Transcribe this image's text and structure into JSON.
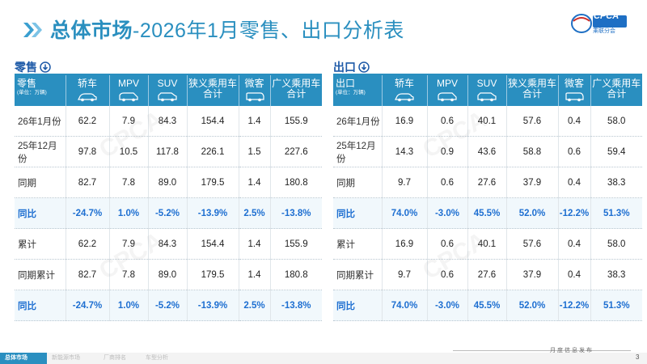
{
  "title": {
    "bold": "总体市场",
    "rest": "-2026年1月零售、出口分析表"
  },
  "logo": {
    "text": "CPCA",
    "sub": "乘联分会"
  },
  "colors": {
    "accent": "#2a8fc0",
    "yoy_text": "#1e6fd1",
    "section_title": "#1e5aa8"
  },
  "retail": {
    "section_title": "零售",
    "header_label": "零售",
    "unit": "(单位：万辆)",
    "columns": [
      "轿车",
      "MPV",
      "SUV",
      "狭义乘用车合计",
      "微客",
      "广义乘用车合计"
    ],
    "rows": [
      {
        "label": "26年1月份",
        "values": [
          "62.2",
          "7.9",
          "84.3",
          "154.4",
          "1.4",
          "155.9"
        ]
      },
      {
        "label": "25年12月份",
        "values": [
          "97.8",
          "10.5",
          "117.8",
          "226.1",
          "1.5",
          "227.6"
        ]
      },
      {
        "label": "同期",
        "values": [
          "82.7",
          "7.8",
          "89.0",
          "179.5",
          "1.4",
          "180.8"
        ]
      },
      {
        "label": "同比",
        "values": [
          "-24.7%",
          "1.0%",
          "-5.2%",
          "-13.9%",
          "2.5%",
          "-13.8%"
        ]
      },
      {
        "label": "累计",
        "values": [
          "62.2",
          "7.9",
          "84.3",
          "154.4",
          "1.4",
          "155.9"
        ]
      },
      {
        "label": "同期累计",
        "values": [
          "82.7",
          "7.8",
          "89.0",
          "179.5",
          "1.4",
          "180.8"
        ]
      },
      {
        "label": "同比",
        "values": [
          "-24.7%",
          "1.0%",
          "-5.2%",
          "-13.9%",
          "2.5%",
          "-13.8%"
        ]
      }
    ]
  },
  "export": {
    "section_title": "出口",
    "header_label": "出口",
    "unit": "(单位：万辆)",
    "columns": [
      "轿车",
      "MPV",
      "SUV",
      "狭义乘用车合计",
      "微客",
      "广义乘用车合计"
    ],
    "rows": [
      {
        "label": "26年1月份",
        "values": [
          "16.9",
          "0.6",
          "40.1",
          "57.6",
          "0.4",
          "58.0"
        ]
      },
      {
        "label": "25年12月份",
        "values": [
          "14.3",
          "0.9",
          "43.6",
          "58.8",
          "0.6",
          "59.4"
        ]
      },
      {
        "label": "同期",
        "values": [
          "9.7",
          "0.6",
          "27.6",
          "37.9",
          "0.4",
          "38.3"
        ]
      },
      {
        "label": "同比",
        "values": [
          "74.0%",
          "-3.0%",
          "45.5%",
          "52.0%",
          "-12.2%",
          "51.3%"
        ]
      },
      {
        "label": "累计",
        "values": [
          "16.9",
          "0.6",
          "40.1",
          "57.6",
          "0.4",
          "58.0"
        ]
      },
      {
        "label": "同期累计",
        "values": [
          "9.7",
          "0.6",
          "27.6",
          "37.9",
          "0.4",
          "38.3"
        ]
      },
      {
        "label": "同比",
        "values": [
          "74.0%",
          "-3.0%",
          "45.5%",
          "52.0%",
          "-12.2%",
          "51.3%"
        ]
      }
    ]
  },
  "footer": {
    "tabs": [
      "总体市场",
      "新能源市场",
      "厂商排名",
      "车型分析"
    ],
    "tag": "月度信息发布",
    "page": "3"
  }
}
